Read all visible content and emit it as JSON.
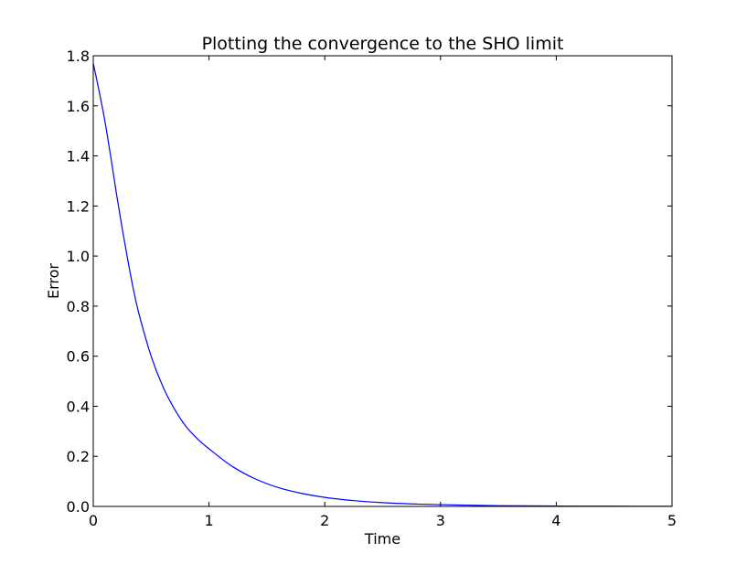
{
  "chart_data": {
    "type": "line",
    "title": "Plotting the convergence to the SHO limit",
    "xlabel": "Time",
    "ylabel": "Error",
    "xlim": [
      0,
      5
    ],
    "ylim": [
      0,
      1.8
    ],
    "xticks": [
      0,
      1,
      2,
      3,
      4,
      5
    ],
    "yticks": [
      0.0,
      0.2,
      0.4,
      0.6,
      0.8,
      1.0,
      1.2,
      1.4,
      1.6,
      1.8
    ],
    "xtick_labels": [
      "0",
      "1",
      "2",
      "3",
      "4",
      "5"
    ],
    "ytick_labels": [
      "0.0",
      "0.2",
      "0.4",
      "0.6",
      "0.8",
      "1.0",
      "1.2",
      "1.4",
      "1.6",
      "1.8"
    ],
    "grid": false,
    "line_color": "#0000ff",
    "series": [
      {
        "x": [
          0,
          0.05,
          0.1,
          0.15,
          0.2,
          0.25,
          0.3,
          0.35,
          0.4,
          0.5,
          0.6,
          0.7,
          0.8,
          0.9,
          1.0,
          1.2,
          1.4,
          1.6,
          1.8,
          2.0,
          2.25,
          2.5,
          2.75,
          3.0,
          3.5,
          4.0,
          4.5,
          5.0
        ],
        "values": [
          1.77,
          1.66,
          1.54,
          1.4,
          1.25,
          1.11,
          0.98,
          0.86,
          0.76,
          0.6,
          0.48,
          0.39,
          0.32,
          0.27,
          0.23,
          0.16,
          0.11,
          0.075,
          0.052,
          0.036,
          0.023,
          0.015,
          0.01,
          0.007,
          0.003,
          0.0015,
          0.0008,
          0.0004
        ]
      }
    ]
  }
}
